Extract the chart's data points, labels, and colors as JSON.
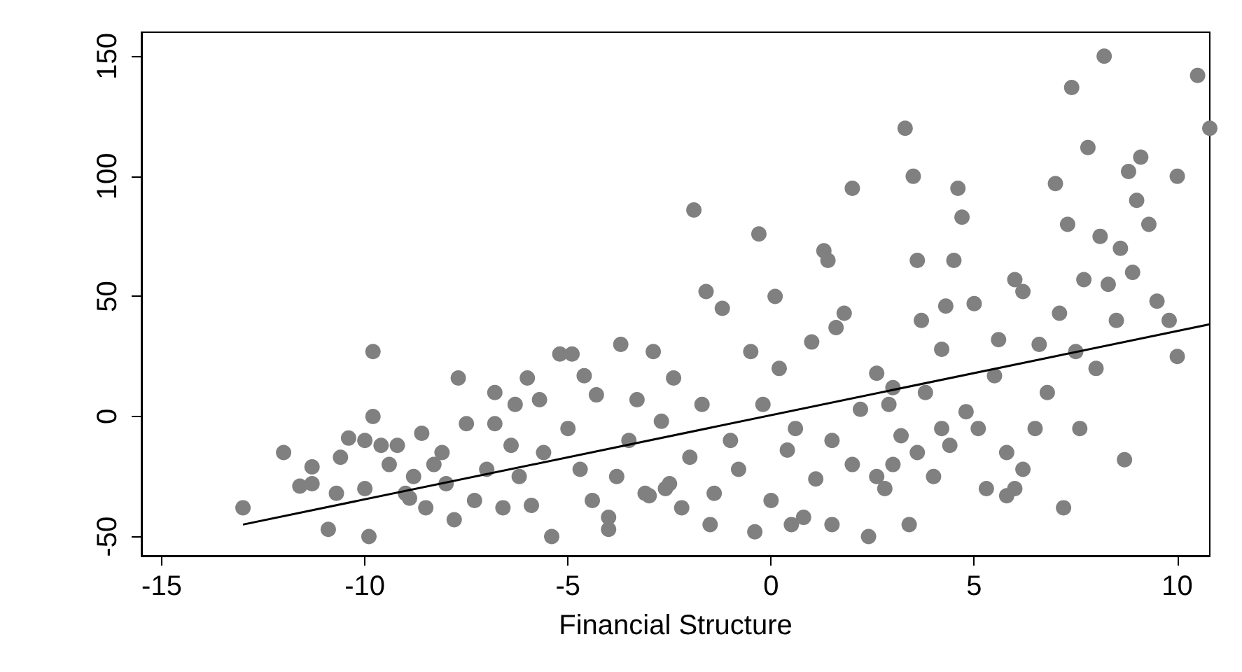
{
  "chart_data": {
    "type": "scatter",
    "xlabel": "Financial Structure",
    "xlim": [
      -15.5,
      10.8
    ],
    "ylim": [
      -58,
      160
    ],
    "xticks": [
      -15,
      -10,
      -5,
      0,
      5,
      10
    ],
    "yticks": [
      -50,
      0,
      50,
      100,
      150
    ],
    "marker": "circle",
    "series": [
      {
        "color": "#808080",
        "x": [
          -13,
          -12,
          -11.6,
          -11.3,
          -10.9,
          -10.7,
          -10.6,
          -10.4,
          -10,
          -10,
          -9.9,
          -9.8,
          -9.8,
          -9.4,
          -9.2,
          -9,
          -8.8,
          -8.6,
          -8.5,
          -8.3,
          -8.1,
          -8,
          -7.8,
          -7.7,
          -7.5,
          -7.3,
          -7,
          -6.8,
          -6.8,
          -6.6,
          -6.4,
          -6.2,
          -6,
          -5.9,
          -5.7,
          -5.6,
          -5.4,
          -5.2,
          -5,
          -4.9,
          -4.7,
          -4.6,
          -4.4,
          -4.3,
          -4,
          -4,
          -3.8,
          -3.7,
          -3.5,
          -3.3,
          -3.1,
          -2.9,
          -2.7,
          -2.5,
          -2.4,
          -2.2,
          -2,
          -1.9,
          -1.7,
          -1.6,
          -1.4,
          -1.2,
          -1,
          -0.8,
          -0.5,
          -0.4,
          -0.3,
          -0.2,
          0,
          0.1,
          0.2,
          0.4,
          0.6,
          0.8,
          1,
          1.1,
          1.3,
          1.4,
          1.5,
          1.6,
          1.8,
          2,
          2,
          2.2,
          2.4,
          2.6,
          2.8,
          3,
          3.2,
          3.3,
          3.4,
          3.5,
          3.6,
          3.7,
          3.8,
          4,
          4.2,
          4.3,
          4.4,
          4.5,
          4.6,
          4.7,
          4.8,
          5,
          5.1,
          5.3,
          5.5,
          5.6,
          5.8,
          6,
          6.2,
          6.2,
          6.5,
          6.6,
          6.8,
          7,
          7.1,
          7.2,
          7.3,
          7.4,
          7.5,
          7.6,
          7.7,
          7.8,
          8,
          8.1,
          8.2,
          8.3,
          8.5,
          8.6,
          8.7,
          8.8,
          8.9,
          9,
          9.1,
          9.3,
          9.5,
          9.8,
          10,
          10,
          10.5,
          10.8,
          -2.6,
          -3,
          -1.5,
          0.5,
          1.5,
          2.6,
          3,
          3.6,
          -6.3,
          -8.9,
          -9.6,
          -11.3,
          5.8,
          6,
          4.2,
          2.9
        ],
        "values": [
          -38,
          -15,
          -29,
          -21,
          -47,
          -32,
          -17,
          -9,
          -10,
          -30,
          -50,
          27,
          0,
          -20,
          -12,
          -32,
          -25,
          -7,
          -38,
          -20,
          -15,
          -28,
          -43,
          16,
          -3,
          -35,
          -22,
          10,
          -3,
          -38,
          -12,
          -25,
          16,
          -37,
          7,
          -15,
          -50,
          26,
          -5,
          26,
          -22,
          17,
          -35,
          9,
          -47,
          -42,
          -25,
          30,
          -10,
          7,
          -32,
          27,
          -2,
          -28,
          16,
          -38,
          -17,
          86,
          5,
          52,
          -32,
          45,
          -10,
          -22,
          27,
          -48,
          76,
          5,
          -35,
          50,
          20,
          -14,
          -5,
          -42,
          31,
          -26,
          69,
          65,
          -10,
          37,
          43,
          95,
          -20,
          3,
          -50,
          18,
          -30,
          12,
          -8,
          120,
          -45,
          100,
          65,
          40,
          10,
          -25,
          28,
          46,
          -12,
          65,
          95,
          83,
          2,
          47,
          -5,
          -30,
          17,
          32,
          -15,
          57,
          52,
          -22,
          -5,
          30,
          10,
          97,
          43,
          -38,
          80,
          137,
          27,
          -5,
          57,
          112,
          20,
          75,
          150,
          55,
          40,
          70,
          -18,
          102,
          60,
          90,
          108,
          80,
          48,
          40,
          100,
          25,
          142,
          120,
          -30,
          -33,
          -45,
          -45,
          -45,
          -25,
          -20,
          -15,
          5,
          -34,
          -12,
          -28,
          -33,
          -30,
          -5,
          5
        ]
      },
      {
        "type": "line",
        "color": "#000000",
        "marker": "none",
        "x": [
          -13,
          10.8
        ],
        "values": [
          -45,
          38.4
        ]
      }
    ]
  }
}
